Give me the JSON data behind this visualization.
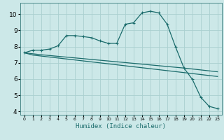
{
  "xlabel": "Humidex (Indice chaleur)",
  "xlim": [
    -0.5,
    23.5
  ],
  "ylim": [
    3.8,
    10.7
  ],
  "yticks": [
    4,
    5,
    6,
    7,
    8,
    9,
    10
  ],
  "xticks": [
    0,
    1,
    2,
    3,
    4,
    5,
    6,
    7,
    8,
    9,
    10,
    11,
    12,
    13,
    14,
    15,
    16,
    17,
    18,
    19,
    20,
    21,
    22,
    23
  ],
  "background_color": "#cce8e8",
  "grid_color": "#aad0d0",
  "line_color": "#1a6b6b",
  "line1": {
    "x": [
      0,
      1,
      2,
      3,
      4,
      5,
      6,
      7,
      8,
      9,
      10,
      11,
      12,
      13,
      14,
      15,
      16,
      17,
      18,
      19,
      20,
      21,
      22,
      23
    ],
    "y": [
      7.62,
      7.78,
      7.78,
      7.85,
      8.05,
      8.68,
      8.68,
      8.62,
      8.55,
      8.35,
      8.2,
      8.2,
      9.38,
      9.47,
      10.08,
      10.18,
      10.08,
      9.38,
      7.98,
      6.68,
      5.98,
      4.88,
      4.32,
      4.18
    ]
  },
  "line2": {
    "x": [
      0,
      1,
      2,
      3,
      4,
      5,
      6,
      7,
      8,
      9,
      10,
      11,
      12,
      13,
      14,
      15,
      16,
      17,
      18,
      19,
      20,
      21,
      22,
      23
    ],
    "y": [
      7.62,
      7.48,
      7.42,
      7.36,
      7.3,
      7.24,
      7.18,
      7.12,
      7.06,
      7.0,
      6.94,
      6.88,
      6.82,
      6.76,
      6.7,
      6.64,
      6.58,
      6.52,
      6.46,
      6.4,
      6.34,
      6.28,
      6.22,
      6.16
    ]
  },
  "line3": {
    "x": [
      0,
      2,
      19,
      23
    ],
    "y": [
      7.62,
      7.5,
      6.68,
      6.45
    ]
  }
}
